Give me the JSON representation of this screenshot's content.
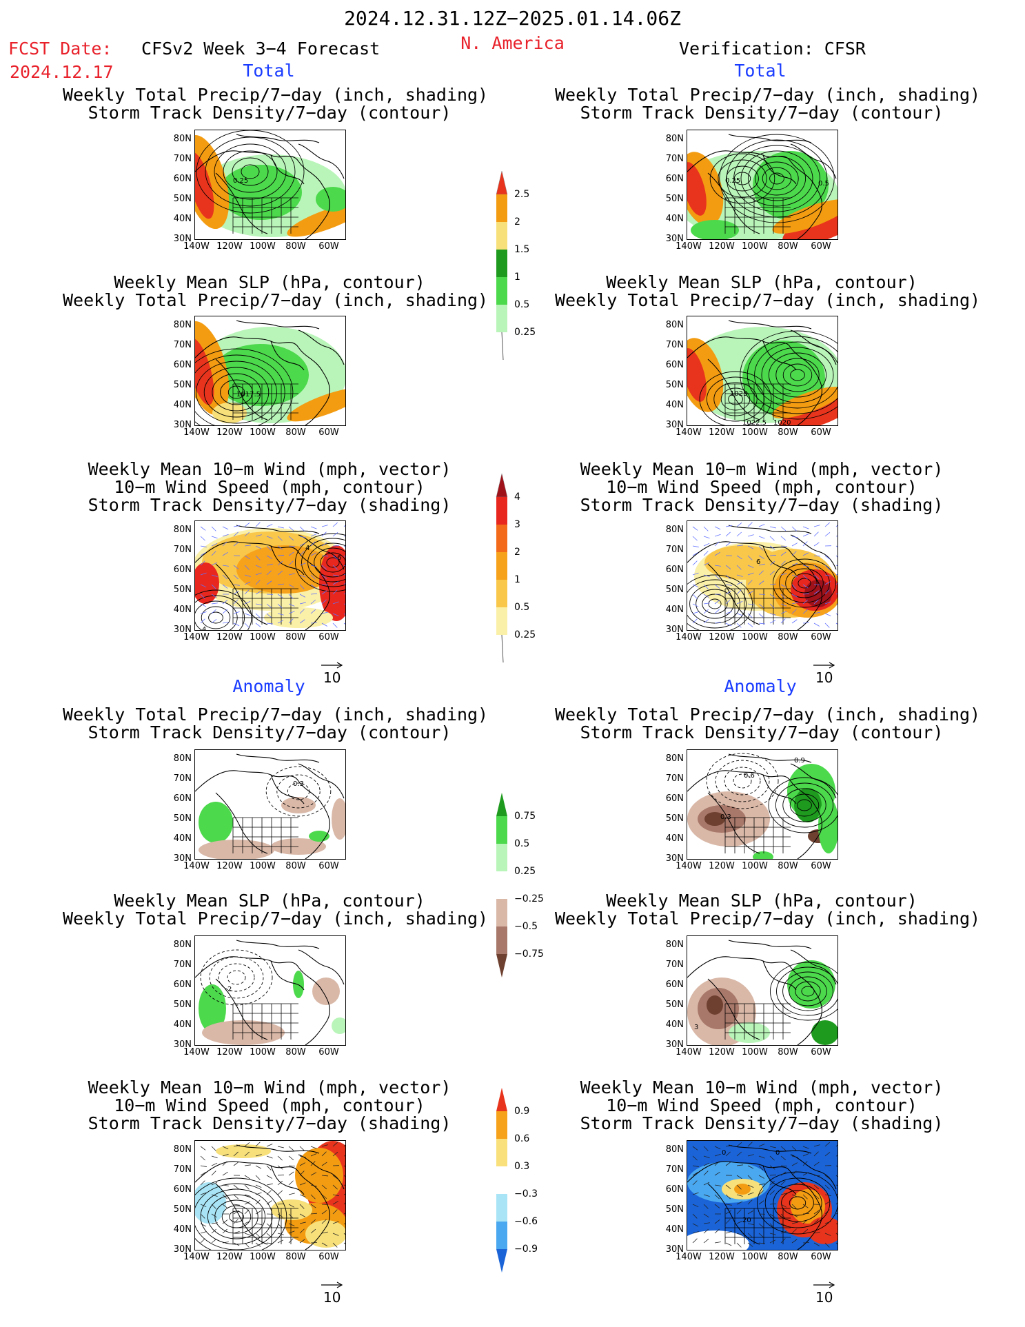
{
  "header": {
    "period": "2024.12.31.12Z−2025.01.14.06Z",
    "region": "N. America",
    "fcst_label": "FCST Date:",
    "fcst_date": "2024.12.17",
    "left_title": "CFSv2 Week 3−4 Forecast",
    "right_title": "Verification: CFSR"
  },
  "sections": {
    "total": "Total",
    "anomaly": "Anomaly"
  },
  "panel_titles": {
    "precip_storm": "Weekly Total Precip/7−day (inch, shading)\nStorm Track Density/7−day (contour)",
    "slp_precip": "Weekly Mean SLP (hPa, contour)\nWeekly Total Precip/7−day (inch, shading)",
    "wind_storm": "Weekly Mean 10−m Wind (mph, vector)\n10−m Wind Speed (mph, contour)\nStorm Track Density/7−day (shading)"
  },
  "axes": {
    "y_ticks": [
      "80N",
      "70N",
      "60N",
      "50N",
      "40N",
      "30N"
    ],
    "x_ticks": [
      "140W",
      "120W",
      "100W",
      "80W",
      "60W"
    ]
  },
  "vector_ref": "10",
  "colorbars": {
    "precip_total": {
      "labels": [
        "2.5",
        "2",
        "1.5",
        "1",
        "0.5",
        "0.25"
      ],
      "colors": [
        "#e8341c",
        "#f39c12",
        "#f7e07a",
        "#1e9b1e",
        "#4cd94c",
        "#b9f5b9"
      ]
    },
    "storm_total": {
      "labels": [
        "4",
        "3",
        "2",
        "1",
        "0.5",
        "0.25"
      ],
      "colors": [
        "#a0121a",
        "#e8281e",
        "#f26a1a",
        "#f7a21b",
        "#f9c84a",
        "#fbf0a8"
      ]
    },
    "precip_anom": {
      "labels": [
        "0.75",
        "0.5",
        "0.25",
        "−0.25",
        "−0.5",
        "−0.75"
      ],
      "colors": [
        "#1e9b1e",
        "#4cd94c",
        "#b9f5b9",
        "#ffffff",
        "#d9b8a8",
        "#a8786a",
        "#6e4030"
      ]
    },
    "storm_anom": {
      "labels": [
        "0.9",
        "0.6",
        "0.3",
        "−0.3",
        "−0.6",
        "−0.9"
      ],
      "colors": [
        "#e8341c",
        "#f7a21b",
        "#f9e07a",
        "#ffffff",
        "#a8e4f5",
        "#4aa8f0",
        "#1a64d8"
      ]
    }
  },
  "contour_labels": {
    "l1": "0.25",
    "r1a": "0.25",
    "r1b": "0.5",
    "l2": "1017.5",
    "r2a": "1025",
    "r2b": "1022.5",
    "r2c": "1020",
    "l3": "4",
    "l3b": "6",
    "l3c": "4",
    "r3": "6",
    "l4": "0.3",
    "r4a": "0.9",
    "r4b": "0.6",
    "r4c": "0.3",
    "l5": "2",
    "r5": "3",
    "r6a": "0",
    "r6b": "0",
    "r6c": "20"
  }
}
